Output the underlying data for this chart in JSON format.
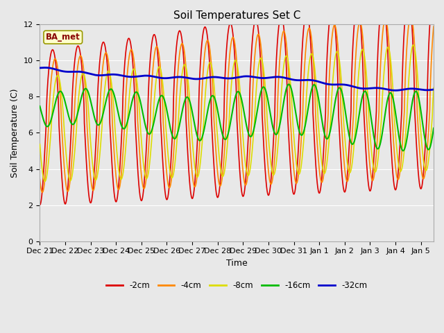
{
  "title": "Soil Temperatures Set C",
  "xlabel": "Time",
  "ylabel": "Soil Temperature (C)",
  "ylim": [
    0,
    12
  ],
  "yticks": [
    0,
    2,
    4,
    6,
    8,
    10,
    12
  ],
  "legend_label": "BA_met",
  "series_labels": [
    "-2cm",
    "-4cm",
    "-8cm",
    "-16cm",
    "-32cm"
  ],
  "series_colors": [
    "#dd0000",
    "#ff8800",
    "#dddd00",
    "#00bb00",
    "#0000cc"
  ],
  "series_linewidths": [
    1.2,
    1.2,
    1.2,
    1.5,
    2.0
  ],
  "fig_facecolor": "#e8e8e8",
  "ax_facecolor": "#e8e8e8",
  "num_days": 15.5,
  "xtick_labels": [
    "Dec 21",
    "Dec 22",
    "Dec 23",
    "Dec 24",
    "Dec 25",
    "Dec 26",
    "Dec 27",
    "Dec 28",
    "Dec 29",
    "Dec 30",
    "Dec 31",
    "Jan 1",
    "Jan 2",
    "Jan 3",
    "Jan 4",
    "Jan 5"
  ],
  "title_fontsize": 11,
  "axis_fontsize": 9,
  "tick_fontsize": 8
}
